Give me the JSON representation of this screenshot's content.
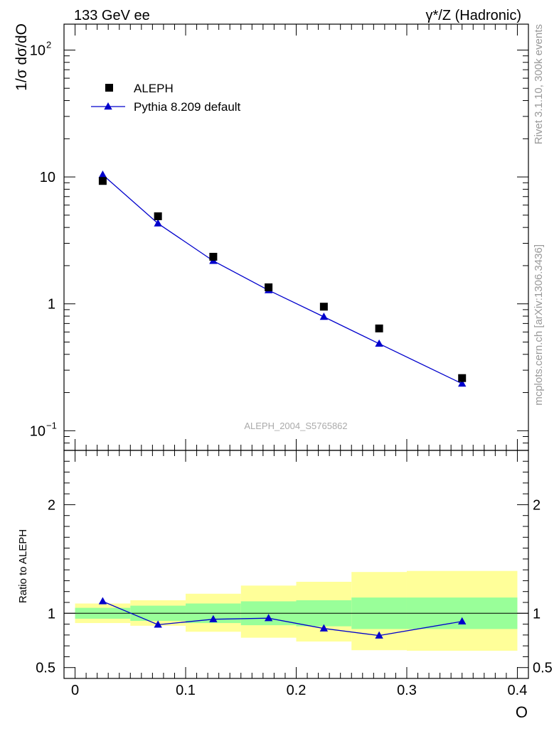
{
  "header": {
    "left_label": "133 GeV ee",
    "right_label": "γ*/Z (Hadronic)"
  },
  "side_labels": {
    "rivet": "Rivet 3.1.10,  300k events",
    "mcplots": "mcplots.cern.ch [arXiv:1306.3436]"
  },
  "watermark": "ALEPH_2004_S5765862",
  "colors": {
    "data": "#000000",
    "mc": "#0000cc",
    "band_inner": "#99ff99",
    "band_outer": "#ffff99"
  },
  "chart_data": [
    {
      "type": "scatter",
      "ylabel": "1/σ  dσ/dO",
      "yscale": "log",
      "xlim": [
        -0.01,
        0.41
      ],
      "ylim": [
        0.07,
        160
      ],
      "ytick_labels": {
        "0.1": "10",
        "1": "1",
        "10": "10",
        "100": "10"
      },
      "ytick_exponents": {
        "0.1": "−1",
        "100": "2"
      },
      "legend": {
        "position": "top-left",
        "entries": [
          "ALEPH",
          "Pythia 8.209 default"
        ]
      },
      "series": [
        {
          "name": "ALEPH",
          "marker": "square",
          "x": [
            0.025,
            0.075,
            0.125,
            0.175,
            0.225,
            0.275,
            0.35
          ],
          "y": [
            9.3,
            4.9,
            2.35,
            1.35,
            0.95,
            0.64,
            0.26
          ]
        },
        {
          "name": "Pythia 8.209 default",
          "marker": "triangle",
          "x": [
            0.025,
            0.075,
            0.125,
            0.175,
            0.225,
            0.275,
            0.35
          ],
          "y": [
            10.4,
            4.3,
            2.18,
            1.28,
            0.79,
            0.485,
            0.235
          ]
        }
      ]
    },
    {
      "type": "line",
      "ylabel": "Ratio to ALEPH",
      "xlabel": "O",
      "xlim": [
        -0.01,
        0.41
      ],
      "ylim": [
        0.4,
        2.5
      ],
      "xticks": [
        0,
        0.1,
        0.2,
        0.3,
        0.4
      ],
      "xtick_labels": [
        "0",
        "0.1",
        "0.2",
        "0.3",
        "0.4"
      ],
      "yticks": [
        0.5,
        1,
        2
      ],
      "ytick_labels": [
        "0.5",
        "1",
        "2"
      ],
      "bands": [
        {
          "x": [
            0.0,
            0.05
          ],
          "inner": [
            0.95,
            1.05
          ],
          "outer": [
            0.91,
            1.09
          ]
        },
        {
          "x": [
            0.05,
            0.1
          ],
          "inner": [
            0.93,
            1.07
          ],
          "outer": [
            0.885,
            1.12
          ]
        },
        {
          "x": [
            0.1,
            0.15
          ],
          "inner": [
            0.91,
            1.09
          ],
          "outer": [
            0.83,
            1.18
          ]
        },
        {
          "x": [
            0.15,
            0.2
          ],
          "inner": [
            0.89,
            1.11
          ],
          "outer": [
            0.775,
            1.255
          ]
        },
        {
          "x": [
            0.2,
            0.25
          ],
          "inner": [
            0.88,
            1.12
          ],
          "outer": [
            0.74,
            1.29
          ]
        },
        {
          "x": [
            0.25,
            0.3
          ],
          "inner": [
            0.855,
            1.145
          ],
          "outer": [
            0.66,
            1.38
          ]
        },
        {
          "x": [
            0.3,
            0.4
          ],
          "inner": [
            0.855,
            1.145
          ],
          "outer": [
            0.655,
            1.39
          ]
        }
      ],
      "series": [
        {
          "name": "Pythia 8.209 default",
          "x": [
            0.025,
            0.075,
            0.125,
            0.175,
            0.225,
            0.275,
            0.35
          ],
          "y": [
            1.11,
            0.895,
            0.945,
            0.955,
            0.86,
            0.795,
            0.925
          ]
        }
      ]
    }
  ]
}
